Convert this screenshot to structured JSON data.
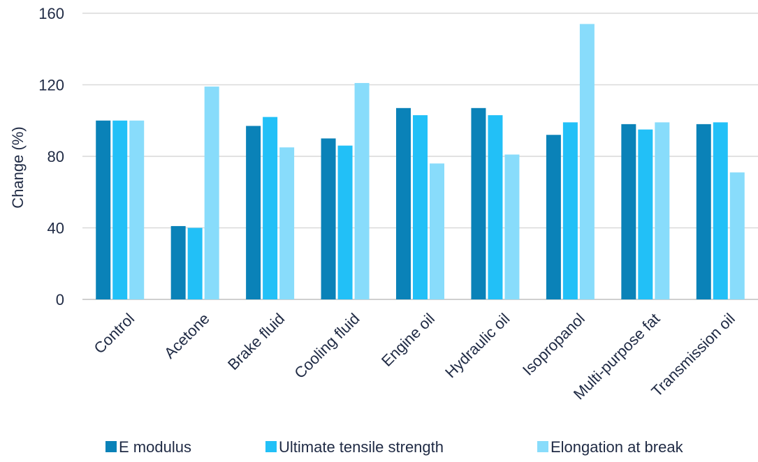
{
  "chart_data": {
    "type": "bar",
    "title": "",
    "xlabel": "",
    "ylabel": "Change (%)",
    "ylim": [
      0,
      160
    ],
    "yticks": [
      0,
      40,
      80,
      120,
      160
    ],
    "grid": true,
    "legend_position": "bottom",
    "categories": [
      "Control",
      "Acetone",
      "Brake fluid",
      "Cooling fluid",
      "Engine oil",
      "Hydraulic oil",
      "Isopropanol",
      "Multi-purpose fat",
      "Transmission oil"
    ],
    "series": [
      {
        "name": "E modulus",
        "color": "#0a82b8",
        "values": [
          100,
          41,
          97,
          90,
          107,
          107,
          92,
          98,
          98
        ]
      },
      {
        "name": "Ultimate tensile strength",
        "color": "#22c0f7",
        "values": [
          100,
          40,
          102,
          86,
          103,
          103,
          99,
          95,
          99
        ]
      },
      {
        "name": "Elongation at break",
        "color": "#88dcfb",
        "values": [
          100,
          119,
          85,
          121,
          76,
          81,
          154,
          99,
          71
        ]
      }
    ]
  }
}
